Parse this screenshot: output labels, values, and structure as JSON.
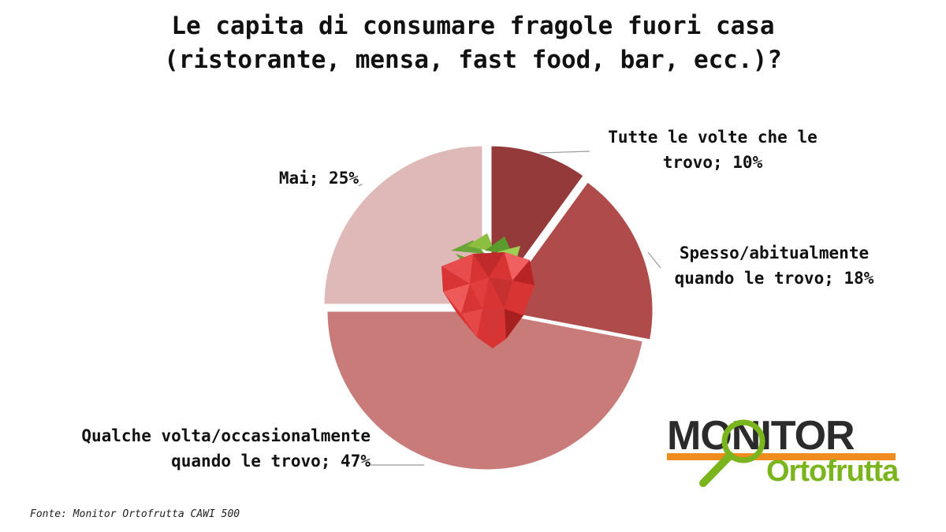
{
  "title": {
    "line1": "Le capita di consumare fragole fuori casa",
    "line2": "(ristorante, mensa, fast food, bar, ecc.)?"
  },
  "chart_data": {
    "type": "pie",
    "title": "Le capita di consumare fragole fuori casa (ristorante, mensa, fast food, bar, ecc.)?",
    "slices": [
      {
        "label": "Tutte le volte che le trovo",
        "value": 10,
        "color": "#943a3b"
      },
      {
        "label": "Spesso/abitualmente quando le trovo",
        "value": 18,
        "color": "#b04b4b"
      },
      {
        "label": "Qualche volta/occasionalmente quando le trovo",
        "value": 47,
        "color": "#c97b7a"
      },
      {
        "label": "Mai",
        "value": 25,
        "color": "#dfb8b8"
      }
    ],
    "data_labels": [
      {
        "line1": "Tutte le volte che le",
        "line2": "trovo; 10%"
      },
      {
        "line1": "Spesso/abitualmente",
        "line2": "quando le trovo; 18%"
      },
      {
        "line1": "Qualche volta/occasionalmente",
        "line2": "quando le trovo; 47%"
      },
      {
        "line1": "Mai; 25%",
        "line2": ""
      }
    ],
    "start": "12 o'clock",
    "direction": "clockwise"
  },
  "source": "Fonte: Monitor Ortofrutta CAWI 500",
  "logo": {
    "top": "MONITOR",
    "bottom": "Ortofrutta"
  },
  "colors": {
    "leader_line": "#9a9a9a",
    "logo_orange": "#f08c1e",
    "logo_green": "#7ab51d"
  }
}
